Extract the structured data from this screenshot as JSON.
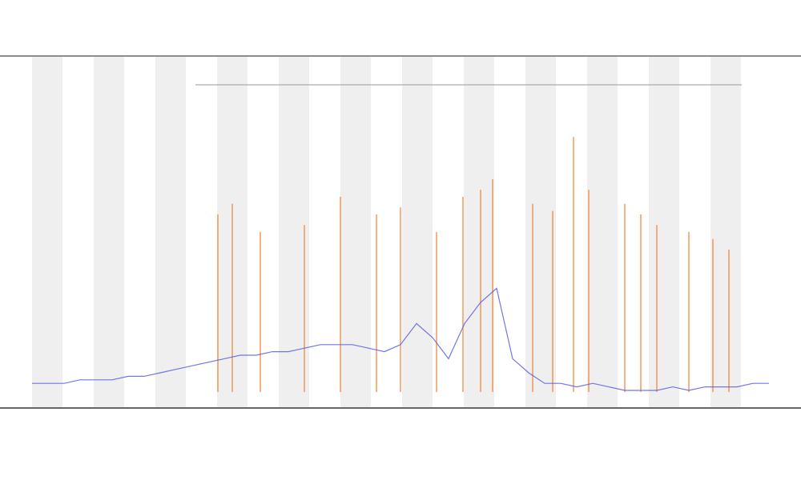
{
  "chart_data": {
    "type": "line",
    "x": [
      0,
      2,
      4,
      6,
      8,
      10,
      12,
      14,
      16,
      18,
      20,
      22,
      24,
      26,
      28,
      30,
      32,
      34,
      36,
      38,
      40,
      42,
      44,
      46,
      48,
      50,
      52,
      54,
      56,
      58,
      60,
      62,
      64,
      66,
      68,
      70,
      72,
      74,
      76,
      78,
      80,
      82,
      84,
      86,
      88,
      90,
      92
    ],
    "xlim": [
      0,
      92
    ],
    "ylim": [
      0,
      100
    ],
    "series": [
      {
        "color": "#5b5fe0",
        "values": [
          7,
          7,
          7,
          8,
          8,
          8,
          9,
          9,
          10,
          11,
          12,
          13,
          14,
          15,
          15,
          16,
          16,
          17,
          18,
          18,
          18,
          17,
          16,
          18,
          24,
          20,
          14,
          24,
          30,
          34,
          14,
          10,
          7,
          7,
          6,
          7,
          6,
          5,
          5,
          5,
          6,
          5,
          6,
          6,
          6,
          7,
          7
        ]
      }
    ],
    "spikes": {
      "color": "#f07f30",
      "x": [
        23.2,
        25,
        28.5,
        34,
        38.5,
        43,
        46,
        50.5,
        53.8,
        56,
        57.5,
        62.5,
        65,
        67.6,
        69.5,
        74,
        76,
        78,
        82,
        85,
        87
      ],
      "values": [
        55,
        58,
        50,
        52,
        60,
        55,
        57,
        50,
        60,
        62,
        65,
        58,
        56,
        77,
        62,
        58,
        55,
        52,
        50,
        48,
        45
      ]
    }
  }
}
